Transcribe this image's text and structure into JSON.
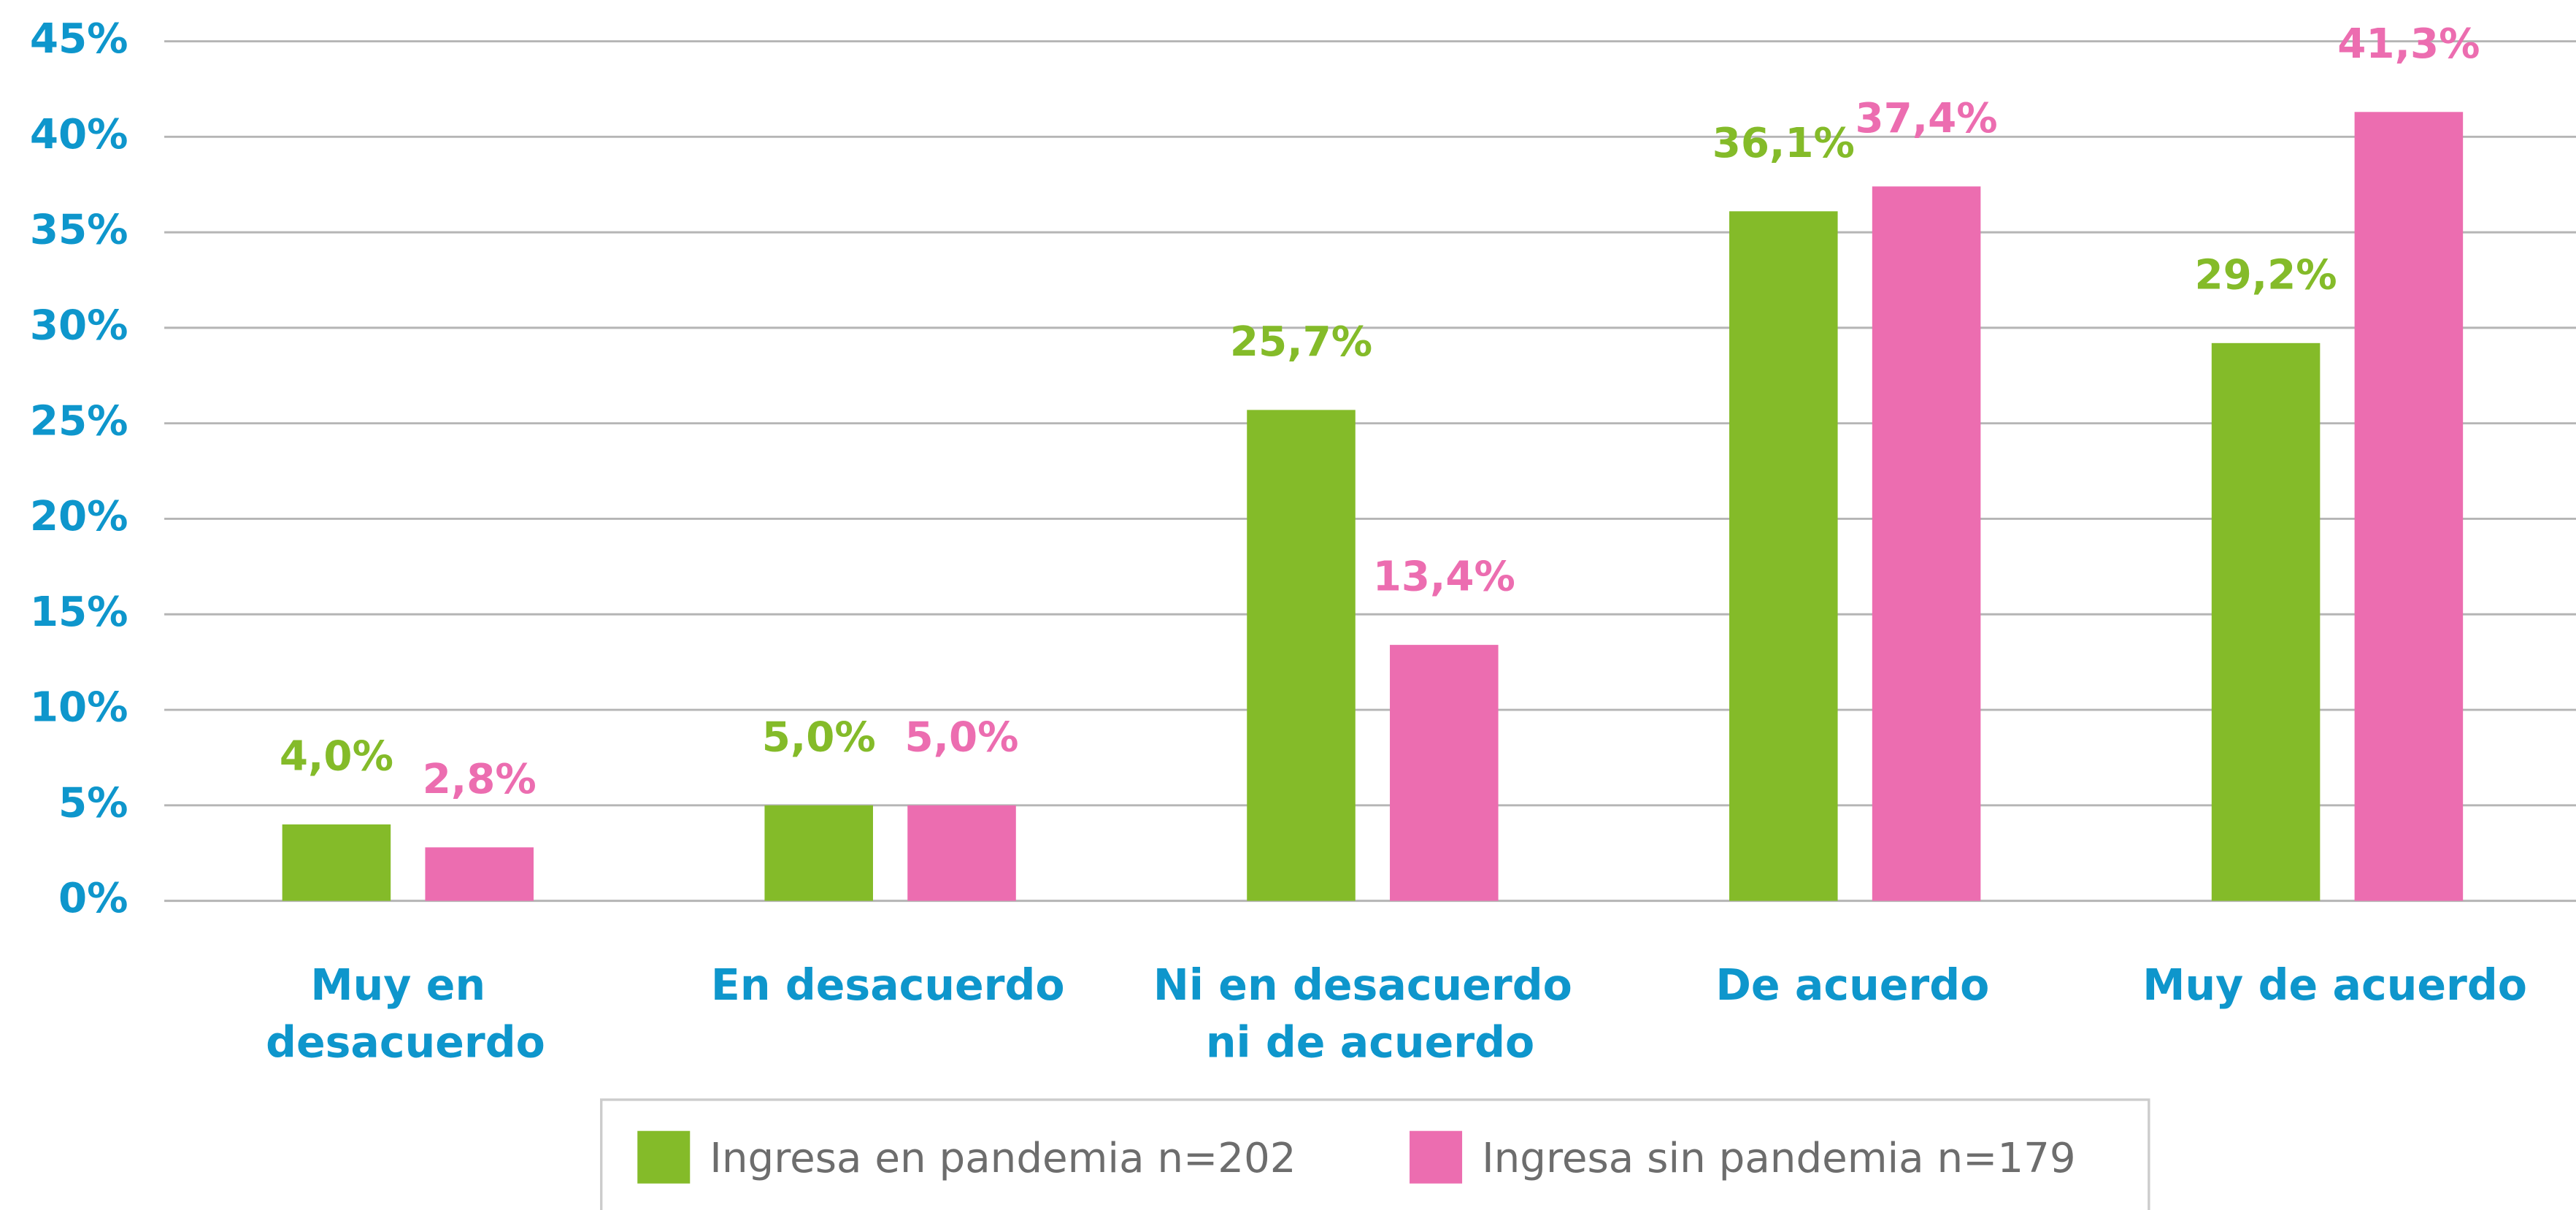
{
  "chart_data": {
    "type": "bar",
    "categories": [
      "Muy en desacuerdo",
      "En desacuerdo",
      "Ni en desacuerdo ni de acuerdo",
      "De acuerdo",
      "Muy de acuerdo"
    ],
    "series": [
      {
        "name": "Ingresa en pandemia n=202",
        "color": "#84bb29",
        "values": [
          4.0,
          5.0,
          25.7,
          36.1,
          29.2
        ],
        "value_labels": [
          "4,0%",
          "5,0%",
          "25,7%",
          "36,1%",
          "29,2%"
        ]
      },
      {
        "name": "Ingresa sin pandemia n=179",
        "color": "#ec6db0",
        "values": [
          2.8,
          5.0,
          13.4,
          37.4,
          41.3
        ],
        "value_labels": [
          "2,8%",
          "5,0%",
          "13,4%",
          "37,4%",
          "41,3%"
        ]
      }
    ],
    "ylim": [
      0,
      45
    ],
    "yticks": [
      {
        "value": 0,
        "label": "0%"
      },
      {
        "value": 5,
        "label": "5%"
      },
      {
        "value": 10,
        "label": "10%"
      },
      {
        "value": 15,
        "label": "15%"
      },
      {
        "value": 20,
        "label": "20%"
      },
      {
        "value": 25,
        "label": "25%"
      },
      {
        "value": 30,
        "label": "30%"
      },
      {
        "value": 35,
        "label": "35%"
      },
      {
        "value": 40,
        "label": "40%"
      },
      {
        "value": 45,
        "label": "45%"
      }
    ],
    "grid": true,
    "legend": "bottom"
  }
}
